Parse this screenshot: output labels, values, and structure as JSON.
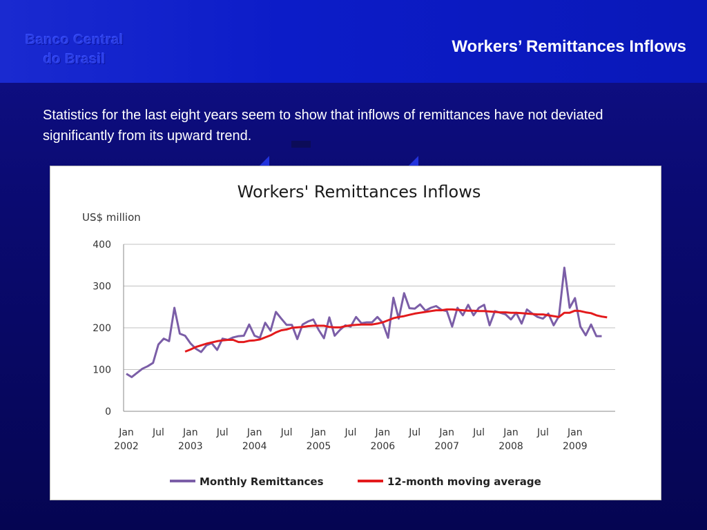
{
  "header": {
    "logo_line1": "Banco Central",
    "logo_line2": "do Brasil",
    "title": "Workers’ Remittances Inflows"
  },
  "intro": {
    "text": "Statistics for the last eight years seem to show that inflows of remittances have not deviated significantly from its upward trend."
  },
  "colors": {
    "monthly": "#7b5ea7",
    "moving_average": "#e31a1c",
    "grid": "#c0c0c0"
  },
  "chart_data": {
    "type": "line",
    "title": "Workers' Remittances Inflows",
    "ylabel": "US$ million",
    "xlabel": "",
    "ylim": [
      0,
      400
    ],
    "yticks": [
      0,
      100,
      200,
      300,
      400
    ],
    "x_start": "2002-01",
    "x_tick_labels": [
      {
        "month": "2002-01",
        "line1": "Jan",
        "line2": "2002"
      },
      {
        "month": "2002-07",
        "line1": "Jul",
        "line2": ""
      },
      {
        "month": "2003-01",
        "line1": "Jan",
        "line2": "2003"
      },
      {
        "month": "2003-07",
        "line1": "Jul",
        "line2": ""
      },
      {
        "month": "2004-01",
        "line1": "Jan",
        "line2": "2004"
      },
      {
        "month": "2004-07",
        "line1": "Jul",
        "line2": ""
      },
      {
        "month": "2005-01",
        "line1": "Jan",
        "line2": "2005"
      },
      {
        "month": "2005-07",
        "line1": "Jul",
        "line2": ""
      },
      {
        "month": "2006-01",
        "line1": "Jan",
        "line2": "2006"
      },
      {
        "month": "2006-07",
        "line1": "Jul",
        "line2": ""
      },
      {
        "month": "2007-01",
        "line1": "Jan",
        "line2": "2007"
      },
      {
        "month": "2007-07",
        "line1": "Jul",
        "line2": ""
      },
      {
        "month": "2008-01",
        "line1": "Jan",
        "line2": "2008"
      },
      {
        "month": "2008-07",
        "line1": "Jul",
        "line2": ""
      },
      {
        "month": "2009-01",
        "line1": "Jan",
        "line2": "2009"
      }
    ],
    "grid": true,
    "legend_position": "bottom",
    "series": [
      {
        "name": "Monthly Remittances",
        "color": "#7b5ea7",
        "x_start": "2002-01",
        "values": [
          90,
          82,
          92,
          102,
          108,
          116,
          160,
          174,
          168,
          248,
          186,
          181,
          163,
          150,
          142,
          158,
          163,
          147,
          174,
          171,
          177,
          180,
          181,
          208,
          181,
          176,
          212,
          193,
          238,
          222,
          207,
          207,
          173,
          208,
          215,
          220,
          195,
          175,
          225,
          181,
          195,
          206,
          203,
          226,
          211,
          213,
          213,
          226,
          212,
          176,
          272,
          222,
          283,
          247,
          246,
          256,
          241,
          248,
          252,
          243,
          240,
          203,
          248,
          230,
          255,
          230,
          248,
          255,
          206,
          240,
          236,
          232,
          220,
          236,
          210,
          244,
          234,
          226,
          222,
          234,
          206,
          228,
          344,
          248,
          271,
          203,
          182,
          208,
          180,
          180
        ]
      },
      {
        "name": "12-month moving average",
        "color": "#e31a1c",
        "x_start": "2002-12",
        "values": [
          143,
          148,
          154,
          158,
          162,
          165,
          168,
          170,
          171,
          171,
          166,
          166,
          169,
          170,
          172,
          177,
          182,
          189,
          194,
          196,
          200,
          201,
          202,
          204,
          205,
          205,
          205,
          202,
          201,
          201,
          204,
          206,
          207,
          208,
          208,
          208,
          210,
          213,
          218,
          223,
          226,
          228,
          231,
          234,
          236,
          238,
          240,
          242,
          242,
          244,
          244,
          243,
          242,
          241,
          241,
          240,
          240,
          239,
          238,
          237,
          237,
          236,
          236,
          235,
          234,
          233,
          232,
          232,
          230,
          228,
          226,
          236,
          236,
          241,
          240,
          237,
          235,
          230,
          227,
          225
        ]
      }
    ]
  }
}
